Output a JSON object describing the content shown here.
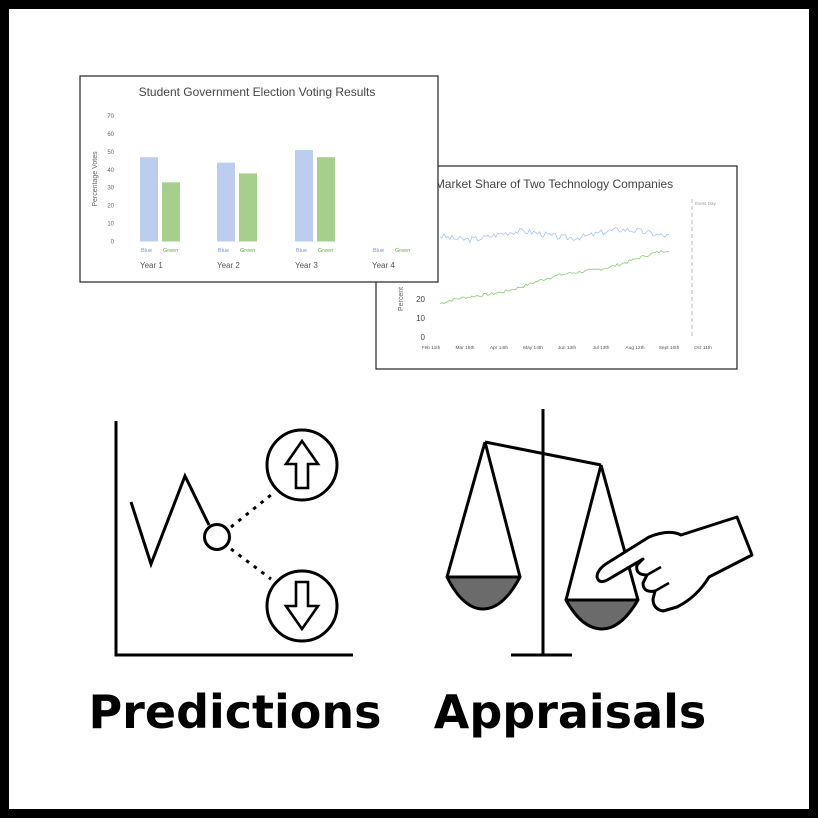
{
  "chart_data": [
    {
      "type": "bar",
      "title": "Student Government Election Voting Results",
      "ylabel": "Percentage Votes",
      "ylim": [
        0,
        70
      ],
      "yticks": [
        0,
        10,
        20,
        30,
        40,
        50,
        60,
        70
      ],
      "categories": [
        "Year 1",
        "Year 2",
        "Year 3",
        "Year 4"
      ],
      "series": [
        {
          "name": "Blue",
          "color": "#bccdf0",
          "label_color": "#7a92d0",
          "values": [
            47,
            44,
            51,
            null
          ]
        },
        {
          "name": "Green",
          "color": "#a6cf8e",
          "label_color": "#6aa84f",
          "values": [
            33,
            38,
            47,
            null
          ]
        }
      ]
    },
    {
      "type": "line",
      "title": "Market Share of Two Technology Companies",
      "ylabel": "Percent",
      "yticks": [
        0,
        10,
        20
      ],
      "xticks": [
        "Feb 11th",
        "Mar 15th",
        "Apr 14th",
        "May 14th",
        "Jun 13th",
        "Jul 13th",
        "Aug 12th",
        "Sept 10th",
        "Oct 11th"
      ],
      "annotation": "Event Day",
      "series": [
        {
          "name": "Blue",
          "color": "#a9c3ef",
          "start": 53,
          "end": 54
        },
        {
          "name": "Green",
          "color": "#8fc77a",
          "start": 17,
          "end": 45
        }
      ]
    }
  ],
  "labels": {
    "predictions": "Predictions",
    "appraisals": "Appraisals"
  },
  "icons": {
    "predictions": "line-chart-with-up-down-arrows-icon",
    "appraisals": "balance-scale-with-pointing-hand-icon"
  }
}
